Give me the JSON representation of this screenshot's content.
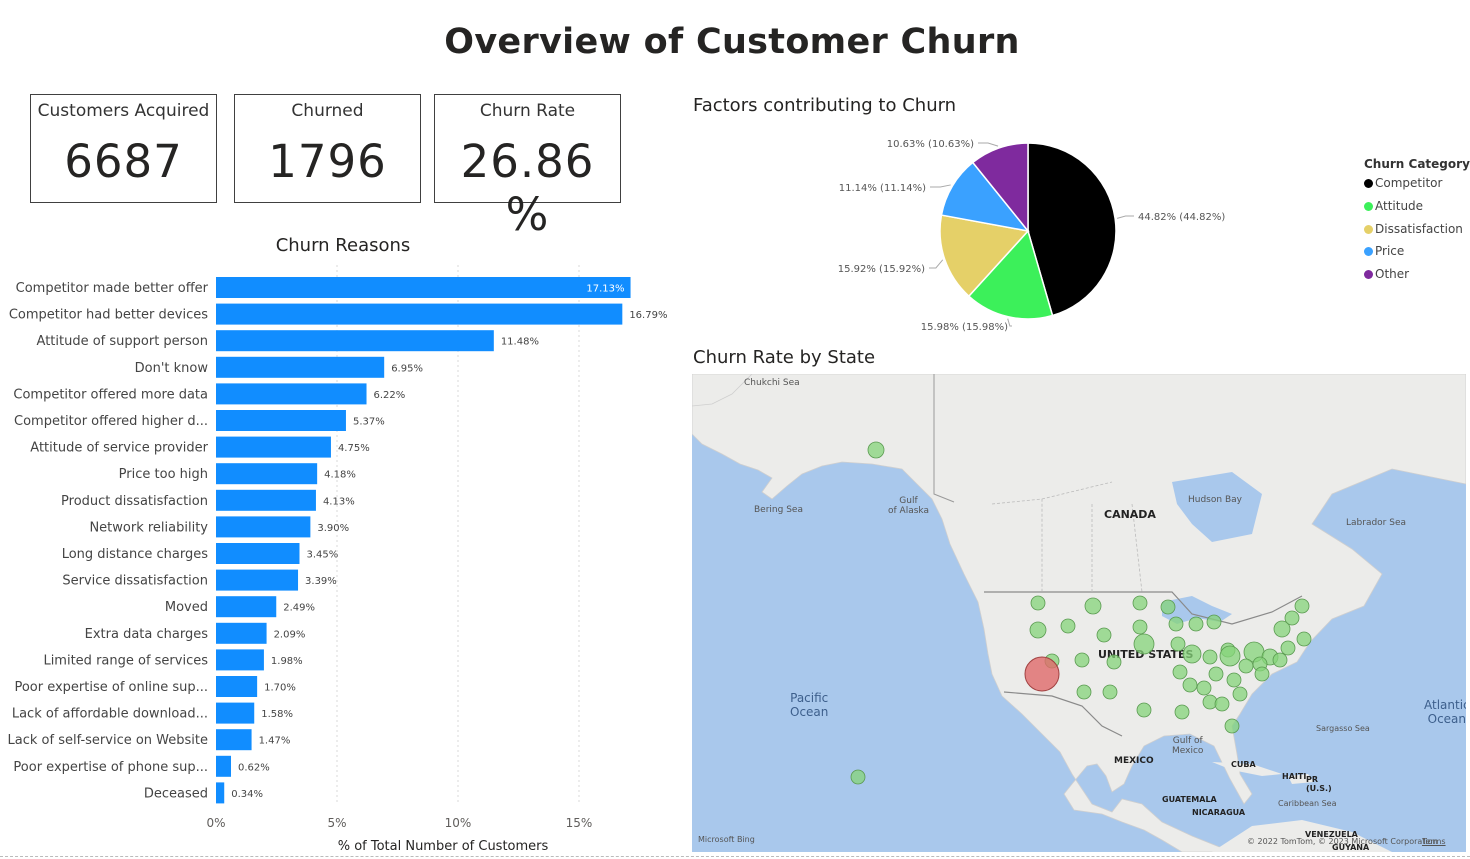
{
  "title": "Overview of Customer Churn",
  "kpis": [
    {
      "label": "Customers Acquired",
      "value": "6687"
    },
    {
      "label": "Churned",
      "value": "1796"
    },
    {
      "label": "Churn Rate",
      "value": "26.86 %"
    }
  ],
  "chart_data": [
    {
      "type": "bar",
      "orientation": "horizontal",
      "title": "Churn Reasons",
      "xlabel": "% of Total Number of Customers",
      "ylabel": "",
      "xlim": [
        0,
        18
      ],
      "xticks": [
        0,
        5,
        10,
        15
      ],
      "xtick_labels": [
        "0%",
        "5%",
        "10%",
        "15%"
      ],
      "grid": true,
      "color": "#118DFF",
      "categories": [
        "Competitor made better offer",
        "Competitor had better devices",
        "Attitude of support person",
        "Don't know",
        "Competitor offered more data",
        "Competitor offered higher d...",
        "Attitude of service provider",
        "Price too high",
        "Product dissatisfaction",
        "Network reliability",
        "Long distance charges",
        "Service dissatisfaction",
        "Moved",
        "Extra data charges",
        "Limited range of services",
        "Poor expertise of online sup...",
        "Lack of affordable download...",
        "Lack of self-service on Website",
        "Poor expertise of phone sup...",
        "Deceased"
      ],
      "values": [
        17.13,
        16.79,
        11.48,
        6.95,
        6.22,
        5.37,
        4.75,
        4.18,
        4.13,
        3.9,
        3.45,
        3.39,
        2.49,
        2.09,
        1.98,
        1.7,
        1.58,
        1.47,
        0.62,
        0.34
      ],
      "labels": [
        "17.13%",
        "16.79%",
        "11.48%",
        "6.95%",
        "6.22%",
        "5.37%",
        "4.75%",
        "4.18%",
        "4.13%",
        "3.90%",
        "3.45%",
        "3.39%",
        "2.49%",
        "2.09%",
        "1.98%",
        "1.70%",
        "1.58%",
        "1.47%",
        "0.62%",
        "0.34%"
      ]
    },
    {
      "type": "pie",
      "title": "Factors contributing to Churn",
      "legend_title": "Churn Category",
      "legend_position": "right",
      "categories": [
        "Competitor",
        "Attitude",
        "Dissatisfaction",
        "Price",
        "Other"
      ],
      "values": [
        44.82,
        15.98,
        15.92,
        11.14,
        10.63
      ],
      "colors": [
        "#000000",
        "#3CF05A",
        "#E5D068",
        "#3AA1FF",
        "#7F2A9E"
      ],
      "labels": [
        "44.82% (44.82%)",
        "15.98% (15.98%)",
        "15.92% (15.92%)",
        "11.14% (11.14%)",
        "10.63% (10.63%)"
      ]
    }
  ],
  "map": {
    "title": "Churn Rate by State",
    "labels": {
      "canada": "CANADA",
      "us": "UNITED STATES",
      "mexico": "MEXICO",
      "chukchi": "Chukchi Sea",
      "bering": "Bering Sea",
      "gulf_alaska": "Gulf\nof Alaska",
      "hudson": "Hudson Bay",
      "labrador": "Labrador Sea",
      "pacific": "Pacific\nOcean",
      "atlantic": "Atlantic\nOcean",
      "sargasso": "Sargasso Sea",
      "gulf_mexico": "Gulf of\nMexico",
      "cuba": "CUBA",
      "haiti": "HAITI",
      "pr": "PR\n(U.S.)",
      "caribbean": "Caribbean Sea",
      "guatemala": "GUATEMALA",
      "nicaragua": "NICARAGUA",
      "venezuela": "VENEZUELA",
      "guyana": "GUYANA"
    },
    "attribution": "© 2022 TomTom, © 2023 Microsoft Corporation",
    "terms": "Terms",
    "logo": "Microsoft Bing",
    "colors": {
      "bubble": "#86D47A",
      "highlight": "#E06A6A",
      "water": "#A9C8EC",
      "land": "#EDEDEB"
    }
  }
}
